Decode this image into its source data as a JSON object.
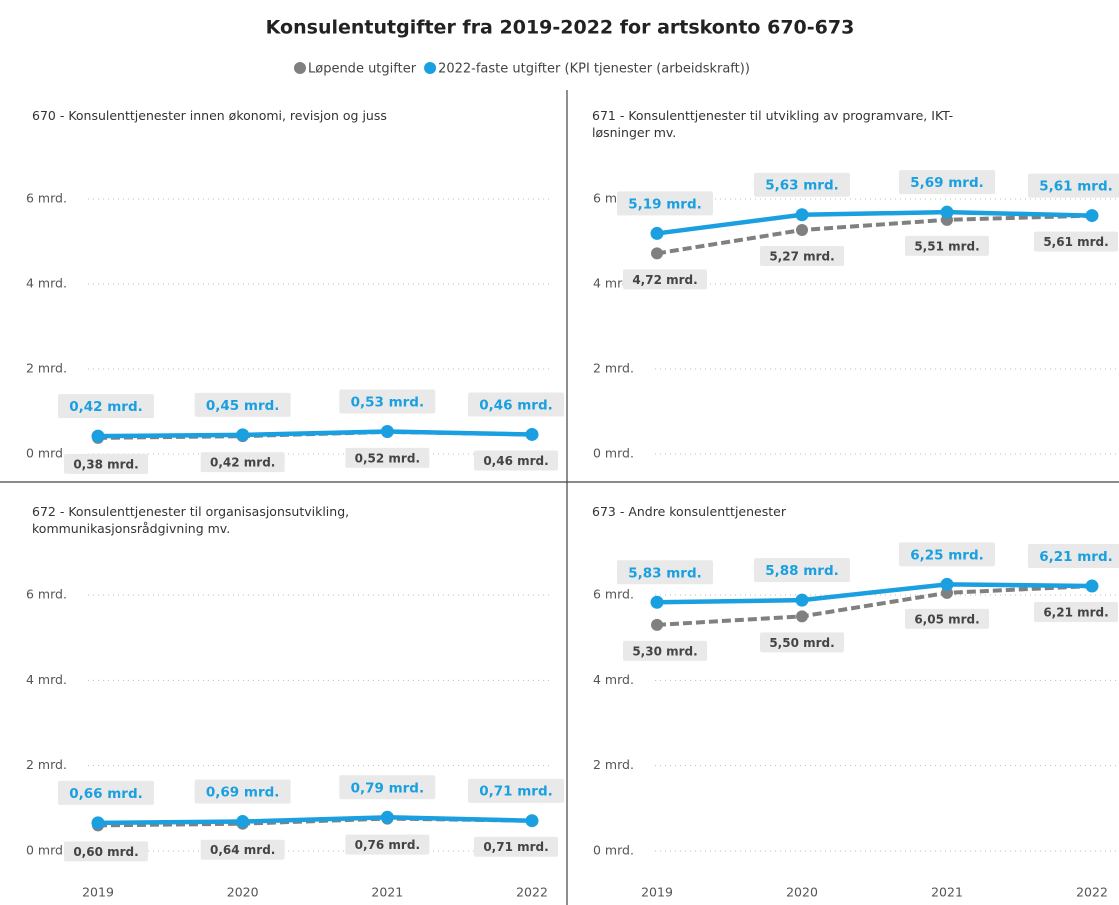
{
  "title": "Konsulentutgifter fra 2019-2022 for artskonto 670-673",
  "chart_data": [
    {
      "type": "line",
      "title": "670 - Konsulenttjenester innen økonomi, revisjon og juss",
      "categories": [
        "2019",
        "2020",
        "2021",
        "2022"
      ],
      "ylim": [
        0,
        7
      ],
      "yticks": [
        {
          "value": 0,
          "label": "0 mrd."
        },
        {
          "value": 2,
          "label": "2 mrd."
        },
        {
          "value": 4,
          "label": "4 mrd."
        },
        {
          "value": 6,
          "label": "6 mrd."
        }
      ],
      "grid": true,
      "series": [
        {
          "name": "Løpende utgifter",
          "color": "#808080",
          "values": [
            0.38,
            0.42,
            0.52,
            0.46
          ],
          "value_labels": [
            "0,38 mrd.",
            "0,42 mrd.",
            "0,52 mrd.",
            "0,46 mrd."
          ]
        },
        {
          "name": "2022-faste utgifter (KPI tjenester (arbeidskraft))",
          "color": "#1aa0e0",
          "values": [
            0.42,
            0.45,
            0.53,
            0.46
          ],
          "value_labels": [
            "0,42 mrd.",
            "0,45 mrd.",
            "0,53 mrd.",
            "0,46 mrd."
          ]
        }
      ]
    },
    {
      "type": "line",
      "title": "671 - Konsulenttjenester til utvikling av programvare, IKT-løsninger mv.",
      "categories": [
        "2019",
        "2020",
        "2021",
        "2022"
      ],
      "ylim": [
        0,
        7
      ],
      "yticks": [
        {
          "value": 0,
          "label": "0 mrd."
        },
        {
          "value": 2,
          "label": "2 mrd."
        },
        {
          "value": 4,
          "label": "4 mrd."
        },
        {
          "value": 6,
          "label": "6 mrd."
        }
      ],
      "grid": true,
      "series": [
        {
          "name": "Løpende utgifter",
          "color": "#808080",
          "values": [
            4.72,
            5.27,
            5.51,
            5.61
          ],
          "value_labels": [
            "4,72 mrd.",
            "5,27 mrd.",
            "5,51 mrd.",
            "5,61 mrd."
          ]
        },
        {
          "name": "2022-faste utgifter (KPI tjenester (arbeidskraft))",
          "color": "#1aa0e0",
          "values": [
            5.19,
            5.63,
            5.69,
            5.61
          ],
          "value_labels": [
            "5,19 mrd.",
            "5,63 mrd.",
            "5,69 mrd.",
            "5,61 mrd."
          ]
        }
      ]
    },
    {
      "type": "line",
      "title": "672 - Konsulenttjenester til organisasjonsutvikling, kommunikasjonsrådgivning mv.",
      "categories": [
        "2019",
        "2020",
        "2021",
        "2022"
      ],
      "ylim": [
        0,
        7
      ],
      "yticks": [
        {
          "value": 0,
          "label": "0 mrd."
        },
        {
          "value": 2,
          "label": "2 mrd."
        },
        {
          "value": 4,
          "label": "4 mrd."
        },
        {
          "value": 6,
          "label": "6 mrd."
        }
      ],
      "grid": true,
      "series": [
        {
          "name": "Løpende utgifter",
          "color": "#808080",
          "values": [
            0.6,
            0.64,
            0.76,
            0.71
          ],
          "value_labels": [
            "0,60 mrd.",
            "0,64 mrd.",
            "0,76 mrd.",
            "0,71 mrd."
          ]
        },
        {
          "name": "2022-faste utgifter (KPI tjenester (arbeidskraft))",
          "color": "#1aa0e0",
          "values": [
            0.66,
            0.69,
            0.79,
            0.71
          ],
          "value_labels": [
            "0,66 mrd.",
            "0,69 mrd.",
            "0,79 mrd.",
            "0,71 mrd."
          ]
        }
      ]
    },
    {
      "type": "line",
      "title": "673 - Andre konsulenttjenester",
      "categories": [
        "2019",
        "2020",
        "2021",
        "2022"
      ],
      "ylim": [
        0,
        7
      ],
      "yticks": [
        {
          "value": 0,
          "label": "0 mrd."
        },
        {
          "value": 2,
          "label": "2 mrd."
        },
        {
          "value": 4,
          "label": "4 mrd."
        },
        {
          "value": 6,
          "label": "6 mrd."
        }
      ],
      "grid": true,
      "series": [
        {
          "name": "Løpende utgifter",
          "color": "#808080",
          "values": [
            5.3,
            5.5,
            6.05,
            6.21
          ],
          "value_labels": [
            "5,30 mrd.",
            "5,50 mrd.",
            "6,05 mrd.",
            "6,21 mrd."
          ]
        },
        {
          "name": "2022-faste utgifter (KPI tjenester (arbeidskraft))",
          "color": "#1aa0e0",
          "values": [
            5.83,
            5.88,
            6.25,
            6.21
          ],
          "value_labels": [
            "5,83 mrd.",
            "5,88 mrd.",
            "6,25 mrd.",
            "6,21 mrd."
          ]
        }
      ]
    }
  ]
}
